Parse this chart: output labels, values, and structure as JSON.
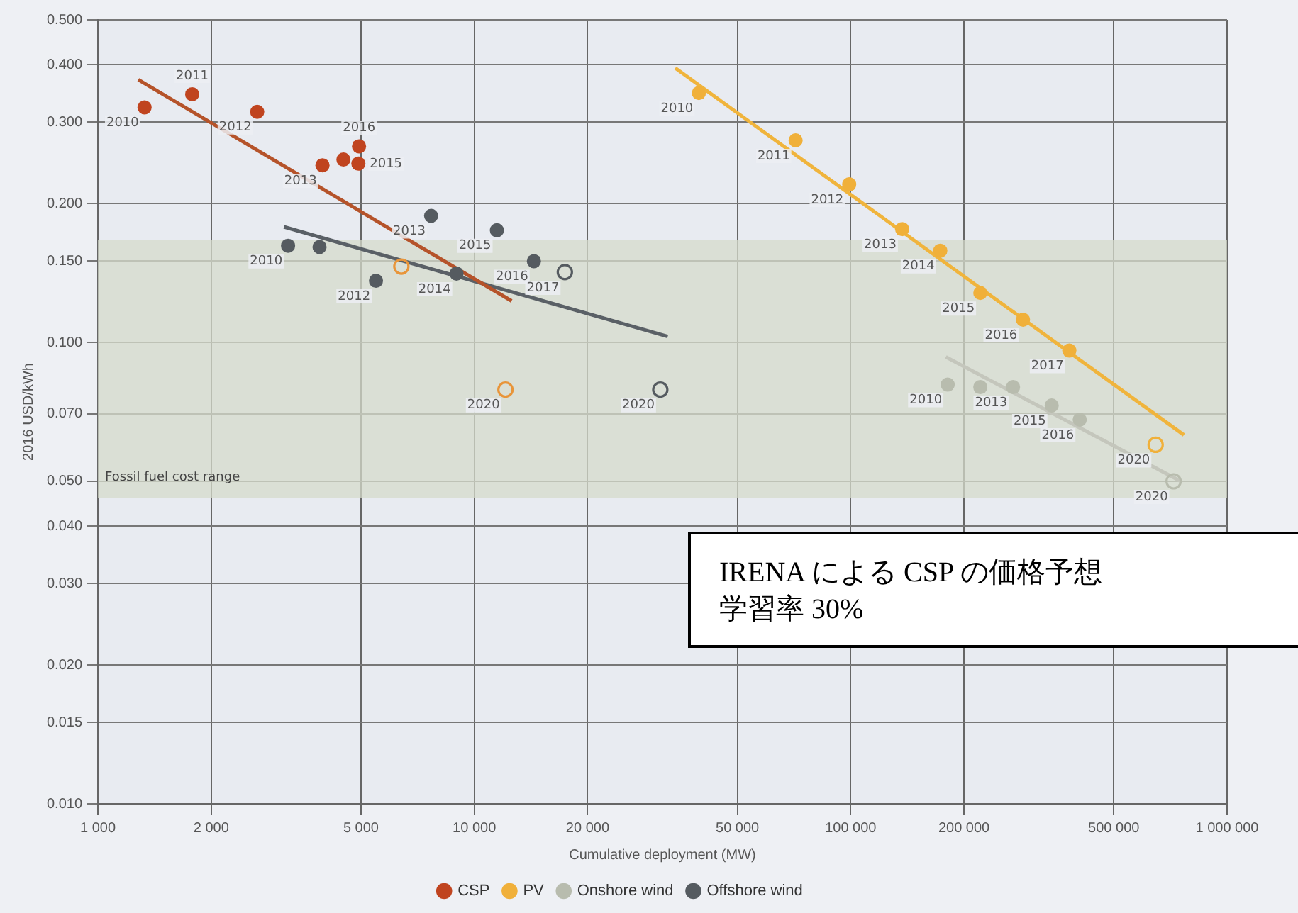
{
  "chart_data": {
    "type": "scatter",
    "xlabel": "Cumulative deployment (MW)",
    "ylabel": "2016 USD/kWh",
    "log": "xy",
    "grid": true,
    "legend": "bottom",
    "marker": "circle",
    "xlim": [
      1000,
      1000000
    ],
    "xticks": [
      {
        "value": 1000,
        "label": "1 000"
      },
      {
        "value": 2000,
        "label": "2 000"
      },
      {
        "value": 5000,
        "label": "5 000"
      },
      {
        "value": 10000,
        "label": "10 000"
      },
      {
        "value": 20000,
        "label": "20 000"
      },
      {
        "value": 50000,
        "label": "50 000"
      },
      {
        "value": 100000,
        "label": "100 000"
      },
      {
        "value": 200000,
        "label": "200 000"
      },
      {
        "value": 500000,
        "label": "500 000"
      },
      {
        "value": 1000000,
        "label": "1 000 000"
      }
    ],
    "ylim": [
      0.01,
      0.5
    ],
    "yticks": [
      {
        "value": 0.01,
        "label": "0.010"
      },
      {
        "value": 0.015,
        "label": "0.015"
      },
      {
        "value": 0.02,
        "label": "0.020"
      },
      {
        "value": 0.03,
        "label": "0.030"
      },
      {
        "value": 0.04,
        "label": "0.040"
      },
      {
        "value": 0.05,
        "label": "0.050"
      },
      {
        "value": 0.07,
        "label": "0.070"
      },
      {
        "value": 0.1,
        "label": "0.100"
      },
      {
        "value": 0.15,
        "label": "0.150"
      },
      {
        "value": 0.2,
        "label": "0.200"
      },
      {
        "value": 0.3,
        "label": "0.300"
      },
      {
        "value": 0.4,
        "label": "0.400"
      },
      {
        "value": 0.5,
        "label": "0.500"
      }
    ],
    "bands": [
      {
        "axis": "y",
        "from": 0.046,
        "to": 0.167,
        "label": "Fossil fuel cost range",
        "color": "#d5dbcb"
      }
    ],
    "series": [
      {
        "name": "CSP",
        "color": "#c0441f",
        "x": [
          1330,
          1780,
          2650,
          3950,
          4490,
          4920,
          4940
        ],
        "values": [
          0.323,
          0.345,
          0.316,
          0.242,
          0.249,
          0.244,
          0.266
        ]
      },
      {
        "name": "PV",
        "color": "#f0b03a",
        "x": [
          39500,
          71400,
          99100,
          137000,
          173000,
          221000,
          287000,
          381000
        ],
        "values": [
          0.347,
          0.274,
          0.22,
          0.176,
          0.158,
          0.128,
          0.112,
          0.096
        ]
      },
      {
        "name": "Onshore wind",
        "color": "#b8bcae",
        "x": [
          181000,
          221000,
          270000,
          342000,
          406000
        ],
        "values": [
          0.081,
          0.08,
          0.08,
          0.073,
          0.068
        ]
      },
      {
        "name": "Offshore wind",
        "color": "#555b60",
        "x": [
          3200,
          3880,
          5480,
          7680,
          8970,
          11480,
          14400
        ],
        "values": [
          0.162,
          0.161,
          0.136,
          0.188,
          0.141,
          0.175,
          0.15
        ]
      },
      {
        "color": "#e8953a",
        "x": [
          6400,
          12100
        ],
        "values": [
          0.146,
          0.079
        ]
      },
      {
        "color": "#f0b03a",
        "x": [
          646000
        ],
        "values": [
          0.06
        ]
      },
      {
        "color": "#b8bcae",
        "x": [
          721000
        ],
        "values": [
          0.05
        ]
      },
      {
        "color": "#555b60",
        "x": [
          17400,
          31200
        ],
        "values": [
          0.142,
          0.079
        ]
      },
      {
        "type": "line",
        "marker": "none",
        "color": "#b5532a",
        "x": [
          1280,
          12560
        ],
        "values": [
          0.371,
          0.123
        ]
      },
      {
        "type": "line",
        "marker": "none",
        "color": "#5a6066",
        "x": [
          3120,
          32650
        ],
        "values": [
          0.178,
          0.103
        ]
      },
      {
        "type": "line",
        "marker": "none",
        "color": "#f0b43c",
        "x": [
          34200,
          768000
        ],
        "values": [
          0.393,
          0.063
        ]
      },
      {
        "type": "line",
        "marker": "none",
        "color": "#c4c6bc",
        "x": [
          179000,
          754000
        ],
        "values": [
          0.093,
          0.05
        ]
      }
    ],
    "annotations": [
      "IRENA による CSP の価格予想",
      "学習率 30%",
      {
        "text": "2010",
        "x": 1330,
        "y": 0.323
      },
      {
        "text": "2011",
        "x": 1780,
        "y": 0.345
      },
      {
        "text": "2012",
        "x": 2650,
        "y": 0.316
      },
      {
        "text": "2013",
        "x": 3950,
        "y": 0.242
      },
      {
        "text": "2015",
        "x": 4920,
        "y": 0.244
      },
      {
        "text": "2016",
        "x": 4940,
        "y": 0.266
      },
      {
        "text": "2010",
        "x": 39500,
        "y": 0.347
      },
      {
        "text": "2011",
        "x": 71400,
        "y": 0.274
      },
      {
        "text": "2012",
        "x": 99100,
        "y": 0.22
      },
      {
        "text": "2013",
        "x": 137000,
        "y": 0.176
      },
      {
        "text": "2014",
        "x": 173000,
        "y": 0.158
      },
      {
        "text": "2015",
        "x": 221000,
        "y": 0.128
      },
      {
        "text": "2016",
        "x": 287000,
        "y": 0.112
      },
      {
        "text": "2017",
        "x": 381000,
        "y": 0.096
      },
      {
        "text": "2020",
        "x": 646000,
        "y": 0.06
      },
      {
        "text": "2010",
        "x": 181000,
        "y": 0.081
      },
      {
        "text": "2013",
        "x": 270000,
        "y": 0.08
      },
      {
        "text": "2015",
        "x": 342000,
        "y": 0.073
      },
      {
        "text": "2016",
        "x": 406000,
        "y": 0.068
      },
      {
        "text": "2020",
        "x": 721000,
        "y": 0.05
      },
      {
        "text": "2010",
        "x": 3200,
        "y": 0.162
      },
      {
        "text": "2012",
        "x": 5480,
        "y": 0.136
      },
      {
        "text": "2013",
        "x": 7680,
        "y": 0.188
      },
      {
        "text": "2014",
        "x": 8970,
        "y": 0.141
      },
      {
        "text": "2015",
        "x": 11480,
        "y": 0.175
      },
      {
        "text": "2016",
        "x": 14400,
        "y": 0.15
      },
      {
        "text": "2017",
        "x": 17400,
        "y": 0.142
      },
      {
        "text": "2020",
        "x": 31200,
        "y": 0.079
      },
      {
        "text": "2020",
        "x": 12100,
        "y": 0.079
      }
    ]
  }
}
